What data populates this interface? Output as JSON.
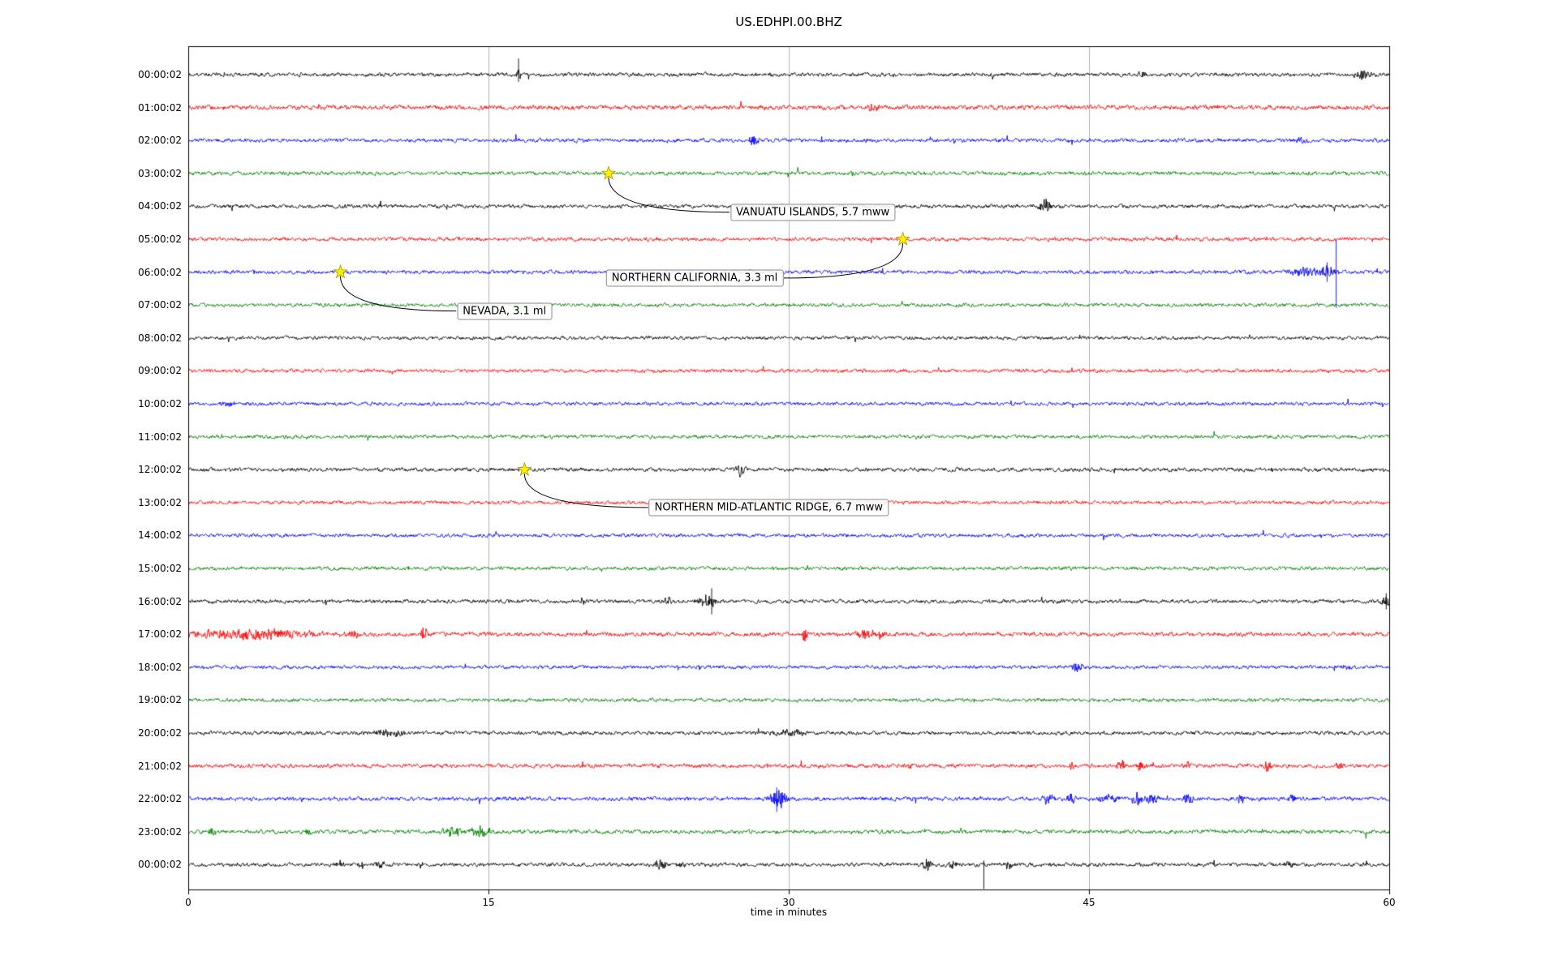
{
  "chart_data": {
    "type": "line",
    "title": "US.EDHPI.00.BHZ",
    "xlabel": "time in minutes",
    "xlim": [
      0,
      60
    ],
    "xticks": [
      0,
      15,
      30,
      45,
      60
    ],
    "grid_lines_minutes": [
      15,
      30,
      45
    ],
    "colors": {
      "trace_cycle": [
        "#000000",
        "#ff0000",
        "#0000ff",
        "#008000"
      ],
      "grid": "#b3b3b3",
      "border": "#000000",
      "star_fill": "#ffee00",
      "star_edge": "#a89b00",
      "label_border": "#8a8a8a"
    },
    "traces": [
      {
        "label": "00:00:02",
        "color": "#000000",
        "amp": 1.9,
        "bursts": [
          [
            16.5,
            2.2,
            0.12
          ],
          [
            47.7,
            1.5,
            0.2
          ],
          [
            58.6,
            2.4,
            0.35
          ]
        ],
        "spikes": [
          [
            16.5,
            20,
            9
          ]
        ]
      },
      {
        "label": "01:00:02",
        "color": "#ff0000",
        "amp": 2.3,
        "bursts": [
          [
            34.2,
            1.4,
            0.3
          ]
        ],
        "spikes": []
      },
      {
        "label": "02:00:02",
        "color": "#0000ff",
        "amp": 1.9,
        "bursts": [
          [
            28.3,
            2.0,
            0.3
          ],
          [
            55.6,
            1.4,
            0.3
          ]
        ],
        "spikes": []
      },
      {
        "label": "03:00:02",
        "color": "#008000",
        "amp": 1.9,
        "bursts": [
          [
            33.2,
            1.6,
            0.12
          ]
        ],
        "spikes": []
      },
      {
        "label": "04:00:02",
        "color": "#000000",
        "amp": 1.9,
        "bursts": [
          [
            42.8,
            3.2,
            0.28
          ]
        ],
        "spikes": []
      },
      {
        "label": "05:00:02",
        "color": "#ff0000",
        "amp": 1.9,
        "bursts": [],
        "spikes": []
      },
      {
        "label": "06:00:02",
        "color": "#0000ff",
        "amp": 1.9,
        "bursts": [
          [
            55.8,
            2.2,
            0.7
          ],
          [
            56.9,
            2.8,
            0.35
          ]
        ],
        "spikes": [
          [
            57.35,
            40,
            44
          ],
          [
            56.9,
            12,
            12
          ]
        ]
      },
      {
        "label": "07:00:02",
        "color": "#008000",
        "amp": 1.8,
        "bursts": [],
        "spikes": []
      },
      {
        "label": "08:00:02",
        "color": "#000000",
        "amp": 1.8,
        "bursts": [],
        "spikes": []
      },
      {
        "label": "09:00:02",
        "color": "#ff0000",
        "amp": 1.8,
        "bursts": [],
        "spikes": []
      },
      {
        "label": "10:00:02",
        "color": "#0000ff",
        "amp": 1.8,
        "bursts": [
          [
            2.0,
            1.3,
            0.3
          ]
        ],
        "spikes": []
      },
      {
        "label": "11:00:02",
        "color": "#008000",
        "amp": 1.8,
        "bursts": [],
        "spikes": []
      },
      {
        "label": "12:00:02",
        "color": "#000000",
        "amp": 1.9,
        "bursts": [
          [
            27.6,
            3.0,
            0.22
          ]
        ],
        "spikes": []
      },
      {
        "label": "13:00:02",
        "color": "#ff0000",
        "amp": 1.8,
        "bursts": [],
        "spikes": []
      },
      {
        "label": "14:00:02",
        "color": "#0000ff",
        "amp": 1.8,
        "bursts": [],
        "spikes": []
      },
      {
        "label": "15:00:02",
        "color": "#008000",
        "amp": 1.8,
        "bursts": [],
        "spikes": []
      },
      {
        "label": "16:00:02",
        "color": "#000000",
        "amp": 1.9,
        "bursts": [
          [
            24.0,
            1.5,
            0.2
          ],
          [
            25.9,
            2.6,
            0.45
          ],
          [
            59.8,
            2.0,
            0.25
          ]
        ],
        "spikes": [
          [
            26.15,
            16,
            16
          ],
          [
            59.85,
            10,
            10
          ]
        ]
      },
      {
        "label": "17:00:02",
        "color": "#ff0000",
        "amp": 2.1,
        "bursts": [
          [
            3.0,
            1.7,
            3.5
          ],
          [
            8.3,
            1.6,
            0.3
          ],
          [
            11.8,
            2.8,
            0.18
          ],
          [
            30.8,
            2.1,
            0.15
          ],
          [
            33.8,
            2.1,
            0.45
          ],
          [
            34.6,
            1.9,
            0.25
          ]
        ],
        "spikes": []
      },
      {
        "label": "18:00:02",
        "color": "#0000ff",
        "amp": 1.8,
        "bursts": [
          [
            44.4,
            1.8,
            0.3
          ],
          [
            58.0,
            1.3,
            0.3
          ]
        ],
        "spikes": []
      },
      {
        "label": "19:00:02",
        "color": "#008000",
        "amp": 1.8,
        "bursts": [],
        "spikes": []
      },
      {
        "label": "20:00:02",
        "color": "#000000",
        "amp": 1.9,
        "bursts": [
          [
            10.0,
            1.25,
            1.0
          ],
          [
            30.0,
            1.2,
            1.0
          ]
        ],
        "spikes": []
      },
      {
        "label": "21:00:02",
        "color": "#ff0000",
        "amp": 2.0,
        "bursts": [
          [
            36.0,
            1.5,
            0.15
          ],
          [
            44.2,
            1.5,
            0.2
          ],
          [
            46.6,
            2.4,
            0.22
          ],
          [
            47.6,
            1.8,
            0.2
          ],
          [
            49.9,
            2.0,
            0.2
          ],
          [
            53.9,
            2.2,
            0.2
          ],
          [
            57.5,
            1.5,
            0.2
          ]
        ],
        "spikes": []
      },
      {
        "label": "22:00:02",
        "color": "#0000ff",
        "amp": 2.0,
        "bursts": [
          [
            29.5,
            3.5,
            0.45
          ],
          [
            43.0,
            2.4,
            0.3
          ],
          [
            44.1,
            1.8,
            0.3
          ],
          [
            46.0,
            1.6,
            0.5
          ],
          [
            47.4,
            2.6,
            0.25
          ],
          [
            48.2,
            2.0,
            0.3
          ],
          [
            50.0,
            1.6,
            0.3
          ],
          [
            52.6,
            2.0,
            0.2
          ],
          [
            55.2,
            1.6,
            0.2
          ]
        ],
        "spikes": [
          [
            29.4,
            14,
            16
          ]
        ]
      },
      {
        "label": "23:00:02",
        "color": "#008000",
        "amp": 2.0,
        "bursts": [
          [
            1.2,
            1.4,
            0.2
          ],
          [
            6.0,
            1.3,
            0.2
          ],
          [
            13.2,
            2.1,
            0.5
          ],
          [
            14.6,
            2.3,
            0.5
          ]
        ],
        "spikes": []
      },
      {
        "label": "00:00:02",
        "color": "#000000",
        "amp": 1.9,
        "bursts": [
          [
            7.6,
            1.7,
            0.2
          ],
          [
            8.6,
            1.7,
            0.2
          ],
          [
            9.6,
            1.6,
            0.2
          ],
          [
            23.6,
            1.9,
            0.3
          ],
          [
            24.6,
            1.6,
            0.2
          ],
          [
            36.9,
            2.3,
            0.22
          ],
          [
            38.2,
            1.8,
            0.2
          ],
          [
            41.0,
            1.6,
            0.2
          ],
          [
            55.0,
            1.3,
            0.3
          ]
        ],
        "spikes": [
          [
            39.75,
            5,
            30
          ]
        ]
      }
    ],
    "events": [
      {
        "label": "VANUATU ISLANDS, 5.7 mww",
        "star_t": 21.0,
        "star_row": 3,
        "label_t": 31.2,
        "label_row": 4.18,
        "attach": "left"
      },
      {
        "label": "NORTHERN CALIFORNIA, 3.3 ml",
        "star_t": 35.7,
        "star_row": 5,
        "label_t": 25.3,
        "label_row": 6.18,
        "attach": "right"
      },
      {
        "label": "NEVADA, 3.1 ml",
        "star_t": 7.6,
        "star_row": 6,
        "label_t": 15.8,
        "label_row": 7.18,
        "attach": "left"
      },
      {
        "label": "NORTHERN MID-ATLANTIC RIDGE, 6.7 mww",
        "star_t": 16.8,
        "star_row": 12,
        "label_t": 29.0,
        "label_row": 13.15,
        "attach": "left"
      }
    ]
  }
}
